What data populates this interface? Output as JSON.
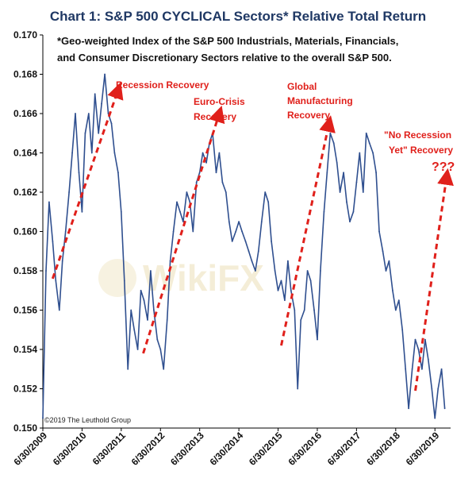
{
  "chart_data": {
    "type": "line",
    "title": "Chart 1: S&P 500 CYCLICAL Sectors* Relative Total Return",
    "subtitle_lines": [
      "*Geo-weighted Index of the S&P 500 Industrials, Materials, Financials,",
      "and Consumer Discretionary Sectors relative to the overall S&P 500."
    ],
    "ylim": [
      0.15,
      0.17
    ],
    "yticks": [
      "0.170",
      "0.168",
      "0.166",
      "0.164",
      "0.162",
      "0.160",
      "0.158",
      "0.156",
      "0.154",
      "0.152",
      "0.150"
    ],
    "xlim": [
      2009.5,
      2019.9
    ],
    "xticks": [
      "6/30/2009",
      "6/30/2010",
      "6/30/2011",
      "6/30/2012",
      "6/30/2013",
      "6/30/2014",
      "6/30/2015",
      "6/30/2016",
      "6/30/2017",
      "6/30/2018",
      "6/30/2019"
    ],
    "grid": false,
    "line_color": "#2f4f8f",
    "annotation_color": "#e0201b",
    "series": [
      {
        "x": [
          2009.5,
          2009.58,
          2009.66,
          2009.75,
          2009.83,
          2009.92,
          2010.0,
          2010.08,
          2010.17,
          2010.25,
          2010.33,
          2010.42,
          2010.5,
          2010.58,
          2010.67,
          2010.75,
          2010.83,
          2010.92,
          2011.0,
          2011.08,
          2011.17,
          2011.25,
          2011.33,
          2011.42,
          2011.5,
          2011.58,
          2011.67,
          2011.75,
          2011.83,
          2011.92,
          2012.0,
          2012.08,
          2012.17,
          2012.25,
          2012.33,
          2012.42,
          2012.5,
          2012.58,
          2012.67,
          2012.75,
          2012.83,
          2012.92,
          2013.0,
          2013.08,
          2013.17,
          2013.25,
          2013.33,
          2013.42,
          2013.5,
          2013.58,
          2013.67,
          2013.75,
          2013.83,
          2013.92,
          2014.0,
          2014.08,
          2014.17,
          2014.25,
          2014.33,
          2014.42,
          2014.5,
          2014.58,
          2014.67,
          2014.75,
          2014.83,
          2014.92,
          2015.0,
          2015.08,
          2015.17,
          2015.25,
          2015.33,
          2015.42,
          2015.5,
          2015.58,
          2015.67,
          2015.75,
          2015.83,
          2015.92,
          2016.0,
          2016.08,
          2016.17,
          2016.25,
          2016.33,
          2016.42,
          2016.5,
          2016.58,
          2016.67,
          2016.75,
          2016.83,
          2016.92,
          2017.0,
          2017.08,
          2017.17,
          2017.25,
          2017.33,
          2017.42,
          2017.5,
          2017.58,
          2017.67,
          2017.75,
          2017.83,
          2017.92,
          2018.0,
          2018.08,
          2018.17,
          2018.25,
          2018.33,
          2018.42,
          2018.5,
          2018.58,
          2018.67,
          2018.75,
          2018.83,
          2018.92,
          2019.0,
          2019.08,
          2019.17,
          2019.25,
          2019.33,
          2019.42,
          2019.5,
          2019.58,
          2019.67,
          2019.75
        ],
        "y": [
          0.1505,
          0.158,
          0.1615,
          0.1595,
          0.1575,
          0.156,
          0.1585,
          0.16,
          0.162,
          0.164,
          0.166,
          0.163,
          0.161,
          0.165,
          0.166,
          0.164,
          0.167,
          0.165,
          0.1665,
          0.168,
          0.166,
          0.1655,
          0.164,
          0.163,
          0.161,
          0.1575,
          0.153,
          0.156,
          0.155,
          0.154,
          0.157,
          0.1565,
          0.1555,
          0.158,
          0.156,
          0.1545,
          0.154,
          0.153,
          0.1555,
          0.1585,
          0.16,
          0.1615,
          0.161,
          0.1605,
          0.162,
          0.1615,
          0.16,
          0.1625,
          0.163,
          0.164,
          0.1635,
          0.1645,
          0.165,
          0.163,
          0.164,
          0.1625,
          0.162,
          0.1605,
          0.1595,
          0.16,
          0.1605,
          0.16,
          0.1595,
          0.159,
          0.1585,
          0.158,
          0.159,
          0.1605,
          0.162,
          0.1615,
          0.1595,
          0.158,
          0.157,
          0.1575,
          0.1565,
          0.1585,
          0.157,
          0.156,
          0.152,
          0.1555,
          0.156,
          0.158,
          0.1575,
          0.156,
          0.1545,
          0.158,
          0.161,
          0.163,
          0.165,
          0.1645,
          0.1635,
          0.162,
          0.163,
          0.1615,
          0.1605,
          0.161,
          0.1625,
          0.164,
          0.162,
          0.165,
          0.1645,
          0.164,
          0.163,
          0.16,
          0.159,
          0.158,
          0.1585,
          0.157,
          0.156,
          0.1565,
          0.155,
          0.153,
          0.151,
          0.153,
          0.1545,
          0.154,
          0.153,
          0.1545,
          0.1535,
          0.152,
          0.1505,
          0.152,
          0.153,
          0.151
        ]
      }
    ],
    "annotations": [
      {
        "lines": [
          "Recession Recovery"
        ]
      },
      {
        "lines": [
          "Euro-Crisis",
          "Recovery"
        ]
      },
      {
        "lines": [
          "Global",
          "Manufacturing",
          "Recovery"
        ]
      },
      {
        "lines": [
          "\"No Recession",
          "Yet\" Recovery"
        ]
      },
      {
        "lines": [
          "???"
        ]
      }
    ],
    "arrows": [
      {
        "from": [
          2009.75,
          0.1576
        ],
        "to": [
          2011.42,
          0.1672
        ]
      },
      {
        "from": [
          2012.06,
          0.1538
        ],
        "to": [
          2014.0,
          0.166
        ]
      },
      {
        "from": [
          2015.58,
          0.1542
        ],
        "to": [
          2016.8,
          0.1655
        ]
      },
      {
        "from": [
          2019.0,
          0.1519
        ],
        "to": [
          2019.8,
          0.1628
        ]
      }
    ],
    "copyright": "©2019 The Leuthold Group",
    "watermark": "WikiFX"
  }
}
